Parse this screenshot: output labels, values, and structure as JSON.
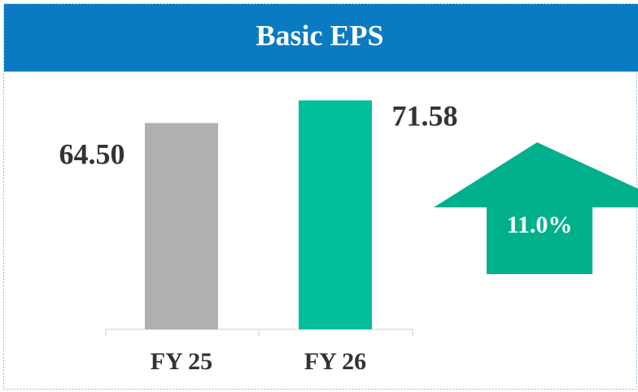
{
  "chart_data": {
    "type": "bar",
    "title": "Basic EPS",
    "categories": [
      "FY 25",
      "FY 26"
    ],
    "values": [
      64.5,
      71.58
    ],
    "value_labels": [
      "64.50",
      "71.58"
    ],
    "colors": [
      "#b0b0b0",
      "#00bf9a"
    ],
    "ylim": [
      0,
      75
    ],
    "annotation": "11.0%",
    "annotation_color": "#00b08c"
  }
}
